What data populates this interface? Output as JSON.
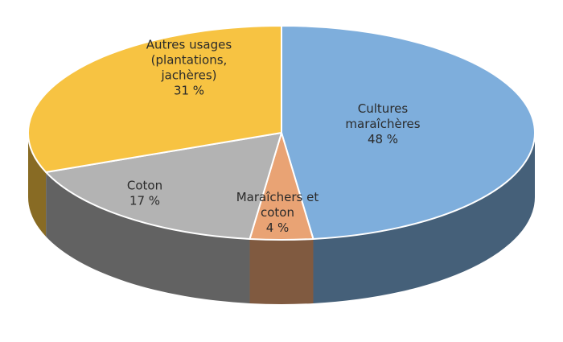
{
  "chart_data": {
    "type": "pie",
    "style": "3d",
    "categories": [
      "Cultures maraîchères",
      "Maraîchers et coton",
      "Coton",
      "Autres usages (plantations, jachères)"
    ],
    "values": [
      48,
      4,
      17,
      31
    ],
    "label_lines": [
      [
        "Cultures",
        "maraîchères",
        "48 %"
      ],
      [
        "Maraîchers et",
        "coton",
        "4 %"
      ],
      [
        "Coton",
        "17 %"
      ],
      [
        "Autres usages",
        "(plantations,",
        "jachères)",
        "31 %"
      ]
    ],
    "colors": [
      "#7eaedc",
      "#e9a374",
      "#b3b3b3",
      "#f7c342"
    ],
    "legend": "none"
  }
}
